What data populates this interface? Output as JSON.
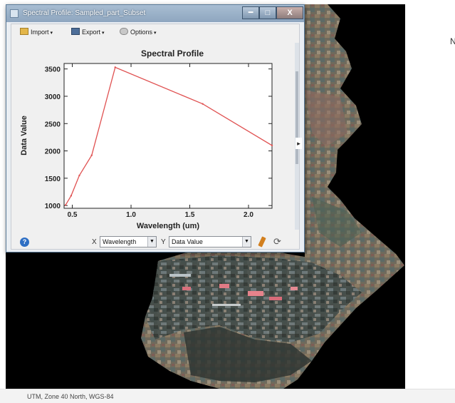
{
  "window": {
    "title": "Spectral Profile: Sampled_part_Subset",
    "min_glyph": "━",
    "max_glyph": "□",
    "close_glyph": "X"
  },
  "toolbar": {
    "import_label": "Import",
    "export_label": "Export",
    "options_label": "Options",
    "caret": "▾"
  },
  "chart_data": {
    "type": "line",
    "title": "Spectral Profile",
    "xlabel": "Wavelength (um)",
    "ylabel": "Data Value",
    "xlim": [
      0.43,
      2.2
    ],
    "ylim": [
      950,
      3600
    ],
    "xticks": [
      0.5,
      1.0,
      1.5,
      2.0
    ],
    "xtick_labels": [
      "0.5",
      "1.0",
      "1.5",
      "2.0"
    ],
    "yticks": [
      1000,
      1500,
      2000,
      2500,
      3000,
      3500
    ],
    "ytick_labels": [
      "1000",
      "1500",
      "2000",
      "2500",
      "3000",
      "3500"
    ],
    "grid": false,
    "color": "#e05252",
    "series": [
      {
        "x": [
          0.443,
          0.49,
          0.56,
          0.665,
          0.865,
          1.61,
          2.2
        ],
        "y": [
          1010,
          1180,
          1550,
          1920,
          3530,
          2860,
          2100
        ]
      }
    ]
  },
  "controls": {
    "x_letter": "X",
    "y_letter": "Y",
    "x_value": "Wavelength",
    "y_value": "Data Value",
    "dropdown_glyph": "▼",
    "help_glyph": "?",
    "refresh_glyph": "⟳",
    "split_glyph": "▸"
  },
  "side_panel": {
    "fragment": "N"
  },
  "status": {
    "text": "UTM, Zone 40 North, WGS-84"
  }
}
